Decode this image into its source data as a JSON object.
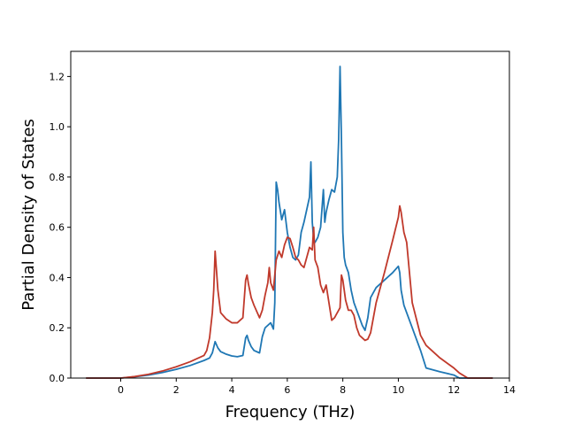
{
  "chart_data": {
    "type": "line",
    "xlabel": "Frequency (THz)",
    "ylabel": "Partial Density of States",
    "xlim": [
      -1.8,
      14.0
    ],
    "ylim": [
      0.0,
      1.3
    ],
    "xticks": [
      0,
      2,
      4,
      6,
      8,
      10,
      12,
      14
    ],
    "yticks": [
      0.0,
      0.2,
      0.4,
      0.6,
      0.8,
      1.0,
      1.2
    ],
    "xtick_labels": [
      "0",
      "2",
      "4",
      "6",
      "8",
      "10",
      "12",
      "14"
    ],
    "ytick_labels": [
      "0.0",
      "0.2",
      "0.4",
      "0.6",
      "0.8",
      "1.0",
      "1.2"
    ],
    "grid": false,
    "legend": "none",
    "series": [
      {
        "color": "#1f77b4",
        "x": [
          -1.25,
          0.0,
          0.5,
          1.0,
          1.5,
          2.0,
          2.5,
          3.0,
          3.2,
          3.3,
          3.4,
          3.5,
          3.6,
          3.8,
          4.0,
          4.2,
          4.4,
          4.5,
          4.55,
          4.6,
          4.7,
          4.8,
          5.0,
          5.1,
          5.2,
          5.4,
          5.5,
          5.55,
          5.6,
          5.65,
          5.7,
          5.8,
          5.85,
          5.9,
          6.0,
          6.1,
          6.2,
          6.3,
          6.4,
          6.5,
          6.6,
          6.8,
          6.85,
          6.9,
          6.95,
          7.0,
          7.1,
          7.2,
          7.3,
          7.35,
          7.4,
          7.5,
          7.6,
          7.7,
          7.8,
          7.85,
          7.9,
          7.95,
          8.0,
          8.05,
          8.1,
          8.2,
          8.3,
          8.4,
          8.6,
          8.7,
          8.8,
          8.9,
          9.0,
          9.1,
          9.2,
          9.5,
          9.8,
          10.0,
          10.05,
          10.1,
          10.2,
          10.3,
          10.5,
          10.8,
          11.0,
          11.5,
          12.0,
          12.2,
          12.5,
          13.4
        ],
        "y": [
          0.0,
          0.0,
          0.005,
          0.012,
          0.022,
          0.035,
          0.05,
          0.07,
          0.08,
          0.1,
          0.145,
          0.12,
          0.105,
          0.095,
          0.088,
          0.085,
          0.09,
          0.16,
          0.17,
          0.15,
          0.125,
          0.11,
          0.1,
          0.165,
          0.2,
          0.22,
          0.195,
          0.3,
          0.78,
          0.75,
          0.7,
          0.63,
          0.65,
          0.67,
          0.58,
          0.52,
          0.48,
          0.47,
          0.49,
          0.58,
          0.62,
          0.72,
          0.86,
          0.62,
          0.55,
          0.54,
          0.56,
          0.6,
          0.75,
          0.62,
          0.66,
          0.71,
          0.75,
          0.74,
          0.8,
          0.95,
          1.24,
          0.95,
          0.58,
          0.48,
          0.45,
          0.42,
          0.35,
          0.3,
          0.24,
          0.21,
          0.19,
          0.24,
          0.32,
          0.34,
          0.36,
          0.39,
          0.42,
          0.445,
          0.42,
          0.35,
          0.29,
          0.26,
          0.2,
          0.11,
          0.04,
          0.025,
          0.012,
          0.0,
          0.0,
          0.0
        ]
      },
      {
        "color": "#c0392b",
        "x": [
          -1.25,
          0.0,
          0.5,
          1.0,
          1.5,
          2.0,
          2.5,
          3.0,
          3.1,
          3.2,
          3.3,
          3.35,
          3.4,
          3.5,
          3.6,
          3.8,
          4.0,
          4.2,
          4.3,
          4.4,
          4.5,
          4.55,
          4.6,
          4.7,
          4.8,
          5.0,
          5.1,
          5.2,
          5.3,
          5.35,
          5.4,
          5.5,
          5.6,
          5.7,
          5.8,
          5.9,
          6.0,
          6.1,
          6.2,
          6.3,
          6.4,
          6.5,
          6.6,
          6.7,
          6.8,
          6.9,
          6.95,
          7.0,
          7.1,
          7.2,
          7.3,
          7.4,
          7.5,
          7.6,
          7.7,
          7.8,
          7.9,
          7.95,
          8.0,
          8.1,
          8.2,
          8.3,
          8.4,
          8.5,
          8.6,
          8.7,
          8.8,
          8.9,
          9.0,
          9.2,
          9.5,
          9.8,
          10.0,
          10.05,
          10.1,
          10.2,
          10.3,
          10.5,
          10.8,
          11.0,
          11.5,
          12.0,
          12.2,
          12.5,
          13.4
        ],
        "y": [
          0.0,
          0.0,
          0.006,
          0.015,
          0.028,
          0.045,
          0.065,
          0.09,
          0.11,
          0.16,
          0.26,
          0.35,
          0.505,
          0.35,
          0.26,
          0.235,
          0.22,
          0.22,
          0.23,
          0.24,
          0.39,
          0.41,
          0.375,
          0.32,
          0.29,
          0.24,
          0.27,
          0.33,
          0.38,
          0.44,
          0.38,
          0.35,
          0.47,
          0.505,
          0.48,
          0.53,
          0.56,
          0.555,
          0.52,
          0.48,
          0.47,
          0.45,
          0.44,
          0.48,
          0.52,
          0.51,
          0.6,
          0.47,
          0.44,
          0.37,
          0.34,
          0.37,
          0.3,
          0.23,
          0.24,
          0.26,
          0.28,
          0.41,
          0.39,
          0.31,
          0.27,
          0.27,
          0.25,
          0.2,
          0.17,
          0.16,
          0.15,
          0.155,
          0.18,
          0.3,
          0.42,
          0.55,
          0.64,
          0.685,
          0.66,
          0.58,
          0.54,
          0.3,
          0.17,
          0.13,
          0.08,
          0.04,
          0.02,
          0.0,
          0.0
        ]
      }
    ]
  }
}
